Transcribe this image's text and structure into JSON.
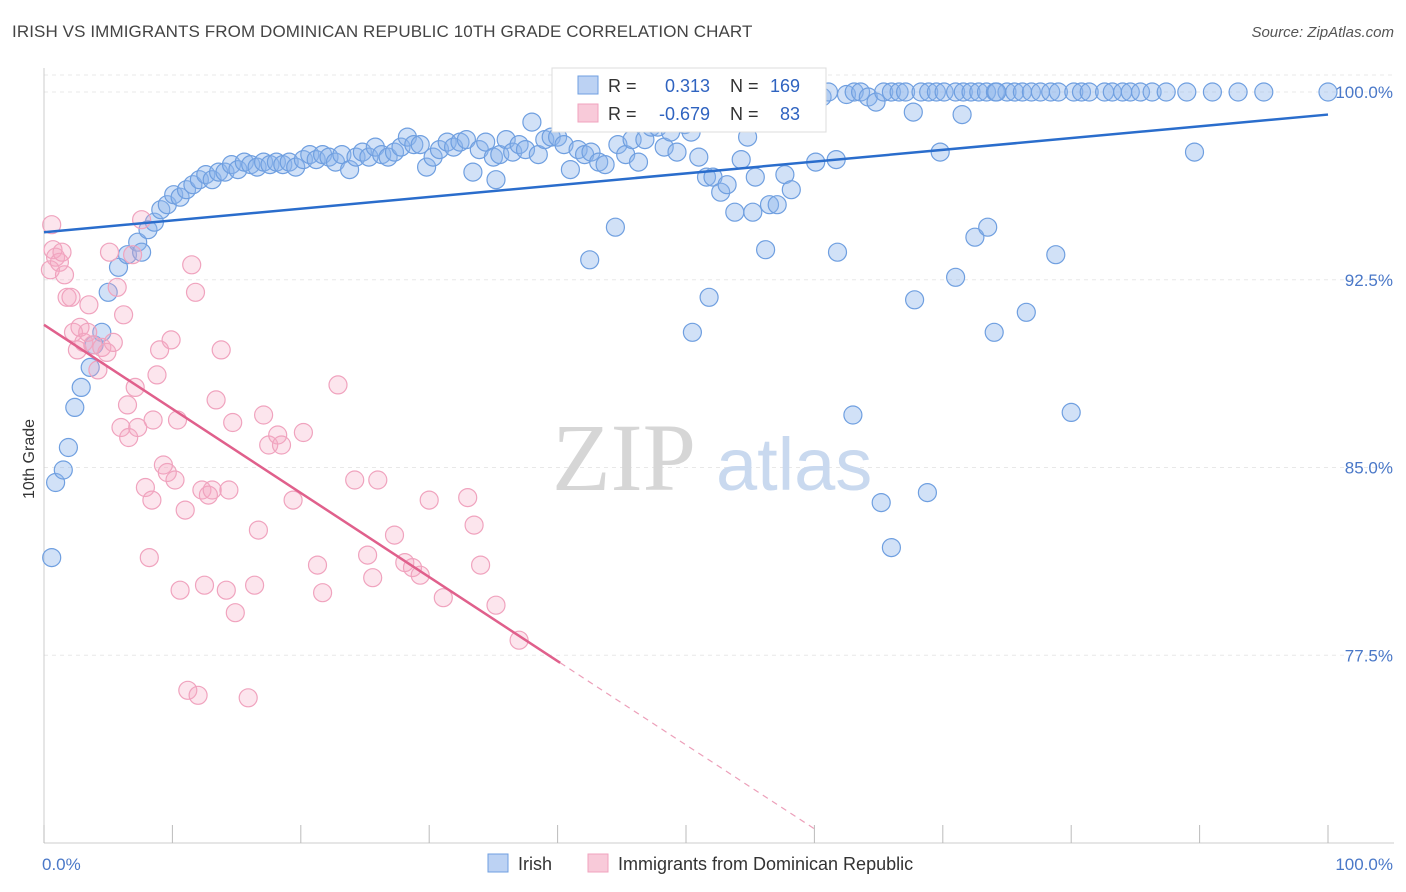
{
  "title": "IRISH VS IMMIGRANTS FROM DOMINICAN REPUBLIC 10TH GRADE CORRELATION CHART",
  "source": "Source: ZipAtlas.com",
  "watermark": {
    "zip": "ZIP",
    "atlas": "atlas"
  },
  "colors": {
    "blue": "#6f9fe0",
    "blue_line": "#2a6dcc",
    "pink": "#f0a3be",
    "pink_line": "#e0608c",
    "tick_text": "#4a78c8"
  },
  "stats_box": {
    "rows": [
      {
        "r_label": "R =",
        "r_value": "0.313",
        "n_label": "N =",
        "n_value": "169"
      },
      {
        "r_label": "R =",
        "r_value": "-0.679",
        "n_label": "N =",
        "n_value": "83"
      }
    ]
  },
  "legend": [
    {
      "label": "Irish"
    },
    {
      "label": "Immigrants from Dominican Republic"
    }
  ],
  "chart_data": {
    "type": "scatter",
    "title": "IRISH VS IMMIGRANTS FROM DOMINICAN REPUBLIC 10TH GRADE CORRELATION CHART",
    "xlabel": "",
    "ylabel": "10th Grade",
    "xlim": [
      0,
      100
    ],
    "ylim": [
      70.0,
      101.2
    ],
    "x_tick_labels": [
      {
        "value": 0,
        "label": "0.0%"
      },
      {
        "value": 100,
        "label": "100.0%"
      }
    ],
    "y_tick_labels": [
      {
        "value": 100.0,
        "label": "100.0%"
      },
      {
        "value": 92.5,
        "label": "92.5%"
      },
      {
        "value": 85.0,
        "label": "85.0%"
      },
      {
        "value": 77.5,
        "label": "77.5%"
      }
    ],
    "grid": true,
    "legend_position": "bottom",
    "series": [
      {
        "name": "Irish",
        "color": "#6f9fe0",
        "trend": {
          "x": [
            0,
            100
          ],
          "y": [
            94.4,
            99.1
          ],
          "dashed_extension": false
        },
        "points": [
          [
            0.6,
            81.4
          ],
          [
            0.9,
            84.4
          ],
          [
            1.5,
            84.9
          ],
          [
            1.9,
            85.8
          ],
          [
            2.4,
            87.4
          ],
          [
            2.9,
            88.2
          ],
          [
            3.6,
            89.0
          ],
          [
            3.9,
            89.9
          ],
          [
            4.5,
            90.4
          ],
          [
            5.0,
            92.0
          ],
          [
            5.8,
            93.0
          ],
          [
            6.5,
            93.5
          ],
          [
            7.3,
            94.0
          ],
          [
            7.6,
            93.6
          ],
          [
            8.1,
            94.5
          ],
          [
            8.6,
            94.8
          ],
          [
            9.1,
            95.3
          ],
          [
            9.6,
            95.5
          ],
          [
            10.1,
            95.9
          ],
          [
            10.6,
            95.8
          ],
          [
            11.1,
            96.1
          ],
          [
            11.6,
            96.3
          ],
          [
            12.1,
            96.5
          ],
          [
            12.6,
            96.7
          ],
          [
            13.1,
            96.5
          ],
          [
            13.6,
            96.8
          ],
          [
            14.1,
            96.8
          ],
          [
            14.6,
            97.1
          ],
          [
            15.1,
            96.9
          ],
          [
            15.6,
            97.2
          ],
          [
            16.1,
            97.1
          ],
          [
            16.6,
            97.0
          ],
          [
            17.1,
            97.2
          ],
          [
            17.6,
            97.1
          ],
          [
            18.1,
            97.2
          ],
          [
            18.6,
            97.1
          ],
          [
            19.1,
            97.2
          ],
          [
            19.6,
            97.0
          ],
          [
            20.2,
            97.3
          ],
          [
            20.7,
            97.5
          ],
          [
            21.2,
            97.3
          ],
          [
            21.7,
            97.5
          ],
          [
            22.2,
            97.4
          ],
          [
            22.7,
            97.2
          ],
          [
            23.2,
            97.5
          ],
          [
            23.8,
            96.9
          ],
          [
            24.3,
            97.4
          ],
          [
            24.8,
            97.6
          ],
          [
            25.3,
            97.4
          ],
          [
            25.8,
            97.8
          ],
          [
            26.3,
            97.5
          ],
          [
            26.8,
            97.4
          ],
          [
            27.3,
            97.6
          ],
          [
            27.8,
            97.8
          ],
          [
            28.3,
            98.2
          ],
          [
            28.8,
            97.9
          ],
          [
            29.3,
            97.9
          ],
          [
            29.8,
            97.0
          ],
          [
            30.3,
            97.4
          ],
          [
            30.8,
            97.7
          ],
          [
            31.4,
            98.0
          ],
          [
            31.9,
            97.8
          ],
          [
            32.4,
            98.0
          ],
          [
            32.9,
            98.1
          ],
          [
            33.4,
            96.8
          ],
          [
            33.9,
            97.7
          ],
          [
            34.4,
            98.0
          ],
          [
            35.0,
            97.4
          ],
          [
            35.5,
            97.5
          ],
          [
            36.0,
            98.1
          ],
          [
            36.5,
            97.6
          ],
          [
            37.0,
            97.9
          ],
          [
            37.5,
            97.7
          ],
          [
            38.0,
            98.8
          ],
          [
            38.5,
            97.5
          ],
          [
            39.0,
            98.1
          ],
          [
            39.5,
            98.2
          ],
          [
            40.0,
            98.2
          ],
          [
            40.5,
            97.9
          ],
          [
            41.0,
            96.9
          ],
          [
            41.6,
            97.7
          ],
          [
            42.1,
            97.5
          ],
          [
            42.6,
            97.6
          ],
          [
            43.2,
            97.2
          ],
          [
            43.7,
            97.1
          ],
          [
            44.2,
            99.0
          ],
          [
            44.7,
            97.9
          ],
          [
            45.3,
            97.5
          ],
          [
            45.8,
            98.1
          ],
          [
            46.3,
            97.2
          ],
          [
            46.8,
            98.1
          ],
          [
            47.3,
            98.6
          ],
          [
            47.8,
            98.6
          ],
          [
            48.3,
            97.8
          ],
          [
            48.8,
            98.4
          ],
          [
            49.3,
            97.6
          ],
          [
            49.9,
            98.7
          ],
          [
            50.4,
            98.4
          ],
          [
            51.0,
            97.4
          ],
          [
            51.6,
            96.6
          ],
          [
            52.1,
            96.6
          ],
          [
            52.7,
            96.0
          ],
          [
            53.2,
            96.3
          ],
          [
            53.8,
            95.2
          ],
          [
            54.3,
            97.3
          ],
          [
            54.8,
            98.2
          ],
          [
            55.4,
            96.6
          ],
          [
            56.0,
            99.3
          ],
          [
            56.5,
            95.5
          ],
          [
            57.1,
            95.5
          ],
          [
            57.7,
            96.7
          ],
          [
            58.2,
            96.1
          ],
          [
            58.8,
            99.5
          ],
          [
            59.4,
            100.0
          ],
          [
            60.1,
            97.2
          ],
          [
            60.6,
            99.8
          ],
          [
            61.1,
            100.0
          ],
          [
            61.7,
            97.3
          ],
          [
            62.5,
            99.9
          ],
          [
            63.1,
            100.0
          ],
          [
            63.6,
            100.0
          ],
          [
            64.2,
            99.8
          ],
          [
            64.8,
            99.6
          ],
          [
            65.4,
            100.0
          ],
          [
            66.0,
            100.0
          ],
          [
            66.6,
            100.0
          ],
          [
            67.1,
            100.0
          ],
          [
            67.7,
            99.2
          ],
          [
            68.3,
            100.0
          ],
          [
            68.9,
            100.0
          ],
          [
            69.5,
            100.0
          ],
          [
            70.1,
            100.0
          ],
          [
            71.0,
            100.0
          ],
          [
            71.6,
            100.0
          ],
          [
            72.2,
            100.0
          ],
          [
            72.8,
            100.0
          ],
          [
            73.4,
            100.0
          ],
          [
            74.1,
            100.0
          ],
          [
            75.0,
            100.0
          ],
          [
            75.6,
            100.0
          ],
          [
            76.2,
            100.0
          ],
          [
            76.9,
            100.0
          ],
          [
            77.6,
            100.0
          ],
          [
            78.4,
            100.0
          ],
          [
            79.0,
            100.0
          ],
          [
            80.2,
            100.0
          ],
          [
            80.8,
            100.0
          ],
          [
            81.4,
            100.0
          ],
          [
            82.6,
            100.0
          ],
          [
            83.2,
            100.0
          ],
          [
            84.0,
            100.0
          ],
          [
            84.6,
            100.0
          ],
          [
            85.4,
            100.0
          ],
          [
            86.3,
            100.0
          ],
          [
            87.4,
            100.0
          ],
          [
            89.0,
            100.0
          ],
          [
            91.0,
            100.0
          ],
          [
            93.0,
            100.0
          ],
          [
            95.0,
            100.0
          ],
          [
            100.0,
            100.0
          ],
          [
            35.2,
            96.5
          ],
          [
            42.5,
            93.3
          ],
          [
            44.5,
            94.6
          ],
          [
            50.5,
            90.4
          ],
          [
            51.8,
            91.8
          ],
          [
            55.2,
            95.2
          ],
          [
            56.2,
            93.7
          ],
          [
            61.8,
            93.6
          ],
          [
            63.0,
            87.1
          ],
          [
            65.2,
            83.6
          ],
          [
            66.0,
            81.8
          ],
          [
            67.8,
            91.7
          ],
          [
            68.8,
            84.0
          ],
          [
            71.0,
            92.6
          ],
          [
            72.5,
            94.2
          ],
          [
            73.5,
            94.6
          ],
          [
            74.0,
            90.4
          ],
          [
            76.5,
            91.2
          ],
          [
            80.0,
            87.2
          ],
          [
            78.8,
            93.5
          ],
          [
            89.6,
            97.6
          ],
          [
            69.8,
            97.6
          ],
          [
            71.5,
            99.1
          ],
          [
            74.2,
            100.0
          ]
        ]
      },
      {
        "name": "Immigrants from Dominican Republic",
        "color": "#f0a3be",
        "trend": {
          "x": [
            0,
            40.2
          ],
          "y": [
            90.7,
            77.2
          ],
          "dashed_extension": true,
          "extension_to": {
            "x": 60.2,
            "y": 70.5
          }
        },
        "points": [
          [
            0.6,
            94.7
          ],
          [
            0.7,
            93.7
          ],
          [
            0.9,
            93.4
          ],
          [
            0.5,
            92.9
          ],
          [
            1.2,
            93.2
          ],
          [
            1.4,
            93.6
          ],
          [
            1.6,
            92.7
          ],
          [
            1.8,
            91.8
          ],
          [
            2.1,
            91.8
          ],
          [
            2.3,
            90.4
          ],
          [
            2.6,
            89.7
          ],
          [
            2.8,
            90.6
          ],
          [
            3.1,
            90.0
          ],
          [
            3.5,
            91.5
          ],
          [
            3.4,
            90.4
          ],
          [
            3.8,
            89.9
          ],
          [
            4.2,
            88.9
          ],
          [
            4.5,
            89.8
          ],
          [
            4.9,
            89.6
          ],
          [
            5.1,
            93.6
          ],
          [
            5.4,
            90.0
          ],
          [
            5.7,
            92.2
          ],
          [
            6.0,
            86.6
          ],
          [
            6.2,
            91.1
          ],
          [
            6.5,
            87.5
          ],
          [
            6.6,
            86.2
          ],
          [
            6.9,
            93.5
          ],
          [
            7.1,
            88.2
          ],
          [
            7.3,
            86.6
          ],
          [
            7.6,
            94.9
          ],
          [
            7.9,
            84.2
          ],
          [
            8.2,
            81.4
          ],
          [
            8.4,
            83.7
          ],
          [
            8.5,
            86.9
          ],
          [
            8.8,
            88.7
          ],
          [
            9.0,
            89.7
          ],
          [
            9.3,
            85.1
          ],
          [
            9.6,
            84.8
          ],
          [
            9.9,
            90.1
          ],
          [
            10.2,
            84.5
          ],
          [
            10.4,
            86.9
          ],
          [
            10.6,
            80.1
          ],
          [
            11.0,
            83.3
          ],
          [
            11.2,
            76.1
          ],
          [
            11.5,
            93.1
          ],
          [
            11.8,
            92.0
          ],
          [
            12.0,
            75.9
          ],
          [
            12.3,
            84.1
          ],
          [
            12.5,
            80.3
          ],
          [
            12.8,
            83.9
          ],
          [
            13.1,
            84.1
          ],
          [
            13.4,
            87.7
          ],
          [
            13.8,
            89.7
          ],
          [
            14.2,
            80.1
          ],
          [
            14.4,
            84.1
          ],
          [
            14.7,
            86.8
          ],
          [
            14.9,
            79.2
          ],
          [
            15.9,
            75.8
          ],
          [
            16.4,
            80.3
          ],
          [
            16.7,
            82.5
          ],
          [
            17.1,
            87.1
          ],
          [
            17.5,
            85.9
          ],
          [
            18.2,
            86.3
          ],
          [
            18.5,
            85.9
          ],
          [
            19.4,
            83.7
          ],
          [
            20.2,
            86.4
          ],
          [
            21.3,
            81.1
          ],
          [
            21.7,
            80.0
          ],
          [
            22.9,
            88.3
          ],
          [
            24.2,
            84.5
          ],
          [
            25.2,
            81.5
          ],
          [
            25.6,
            80.6
          ],
          [
            26.0,
            84.5
          ],
          [
            27.3,
            82.3
          ],
          [
            28.1,
            81.2
          ],
          [
            28.7,
            81.0
          ],
          [
            29.3,
            80.7
          ],
          [
            30.0,
            83.7
          ],
          [
            31.1,
            79.8
          ],
          [
            33.0,
            83.8
          ],
          [
            33.5,
            82.7
          ],
          [
            34.0,
            81.1
          ],
          [
            35.2,
            79.5
          ],
          [
            37.0,
            78.1
          ]
        ]
      }
    ]
  }
}
